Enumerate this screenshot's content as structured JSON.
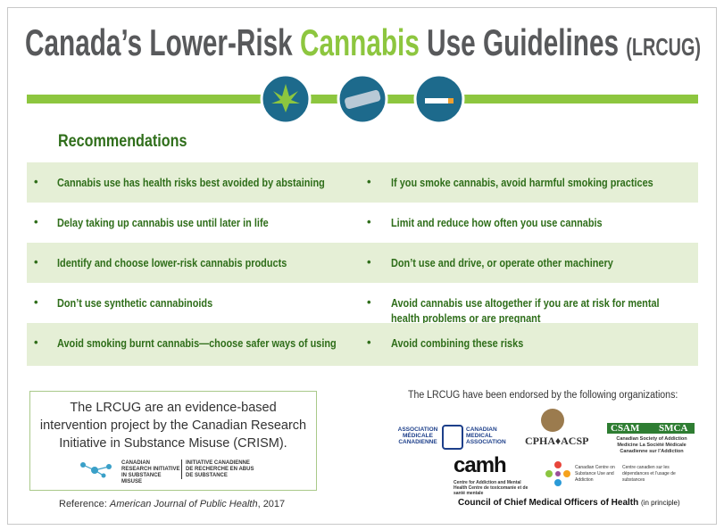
{
  "header": {
    "title": {
      "part1": "Canada’s Lower-Risk",
      "highlight": "Cannabis",
      "part2": "Use Guidelines",
      "abbr": "(LRCUG)"
    }
  },
  "recommendations": {
    "heading": "Recommendations",
    "bullet": "•",
    "rows": [
      [
        "Cannabis use has health risks best avoided by abstaining",
        "If you smoke cannabis, avoid harmful smoking practices"
      ],
      [
        "Delay taking up cannabis use until later in life",
        "Limit and reduce how often you use cannabis"
      ],
      [
        "Identify and choose lower-risk cannabis products",
        "Don’t use and drive, or operate other machinery"
      ],
      [
        "Don’t use synthetic cannabinoids",
        "Avoid cannabis use altogether if you are at risk for mental health problems or are pregnant"
      ],
      [
        "Avoid smoking burnt cannabis—choose safer ways of using",
        "Avoid combining these risks"
      ]
    ]
  },
  "info_box": {
    "text": "The LRCUG are an evidence-based intervention project by the Canadian Research Initiative in Substance Misuse (CRISM).",
    "logo_en": "CANADIAN RESEARCH INITIATIVE IN SUBSTANCE MISUSE",
    "logo_fr": "INITIATIVE CANADIENNE DE RECHERCHE EN ABUS DE SUBSTANCE"
  },
  "reference": {
    "label": "Reference:",
    "journal": "American Journal of Public Health",
    "year": ", 2017"
  },
  "endorsements": {
    "intro": "The LRCUG have been endorsed by the following organizations:",
    "cma_fr": "ASSOCIATION MÉDICALE CANADIENNE",
    "cma_en": "CANADIAN MEDICAL ASSOCIATION",
    "cpha": "CPHA♦ACSP",
    "csam": "CSAM",
    "smca": "SMCA",
    "csam_text": "Canadian Society of Addiction Medicine La Société Médicale Canadienne sur l’Addiction",
    "camh": "camh",
    "camh_text": "Centre for Addiction and Mental Health Centre de toxicomanie et de santé mentale",
    "ccsa_en": "Canadian Centre on Substance Use and Addiction",
    "ccsa_fr": "Centre canadien sur les dépendances et l’usage de substances",
    "council": "Council of Chief Medical Officers of Health",
    "council_note": "(in principle)"
  }
}
